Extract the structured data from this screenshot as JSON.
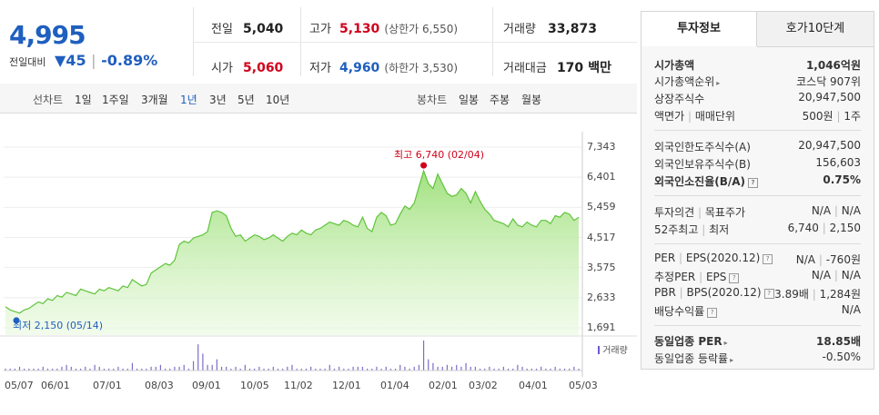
{
  "quote": {
    "price": "4,995",
    "change_label": "전일대비",
    "change_arrow": "▼",
    "change_value": "45",
    "change_pct": "-0.89%",
    "prev_close_label": "전일",
    "prev_close": "5,040",
    "high_label": "고가",
    "high": "5,130",
    "upper_limit": "(상한가 6,550)",
    "volume_label": "거래량",
    "volume": "33,873",
    "open_label": "시가",
    "open": "5,060",
    "low_label": "저가",
    "low": "4,960",
    "lower_limit": "(하한가 3,530)",
    "amount_label": "거래대금",
    "amount": "170",
    "amount_unit": "백만"
  },
  "toolbar": {
    "line_chart": "선차트",
    "periods": [
      "1일",
      "1주일",
      "3개월",
      "1년",
      "3년",
      "5년",
      "10년"
    ],
    "selected_period": "1년",
    "candle_chart": "봉차트",
    "candle_periods": [
      "일봉",
      "주봉",
      "월봉"
    ]
  },
  "chart_data": {
    "type": "area",
    "y_ticks": [
      "7,343",
      "6,401",
      "5,459",
      "4,517",
      "3,575",
      "2,633",
      "1,691"
    ],
    "x_ticks": [
      "05/07",
      "06/01",
      "07/01",
      "08/03",
      "09/01",
      "10/05",
      "11/02",
      "12/01",
      "01/04",
      "02/01",
      "03/02",
      "04/01",
      "05/03"
    ],
    "ylim": [
      1691,
      7343
    ],
    "high_annotation": "최고 6,740 (02/04)",
    "low_annotation": "최저 2,150 (05/14)",
    "volume_label": "거래량",
    "values": [
      2350,
      2250,
      2200,
      2150,
      2250,
      2300,
      2400,
      2500,
      2450,
      2600,
      2550,
      2700,
      2650,
      2800,
      2750,
      2700,
      2900,
      2850,
      2800,
      2750,
      2900,
      2850,
      2950,
      2900,
      2850,
      3000,
      2950,
      3200,
      3100,
      3000,
      3050,
      3400,
      3500,
      3600,
      3700,
      3650,
      3800,
      4300,
      4400,
      4350,
      4500,
      4550,
      4600,
      4700,
      5300,
      5350,
      5300,
      5200,
      4800,
      4550,
      4600,
      4400,
      4500,
      4600,
      4550,
      4450,
      4500,
      4600,
      4500,
      4400,
      4550,
      4650,
      4600,
      4750,
      4650,
      4600,
      4750,
      4800,
      4900,
      5000,
      4950,
      4900,
      5050,
      5000,
      4900,
      4850,
      5150,
      4800,
      4700,
      5150,
      5300,
      5200,
      4900,
      4950,
      5250,
      5500,
      5400,
      5600,
      6100,
      6600,
      6200,
      6050,
      6500,
      6200,
      5900,
      5800,
      5850,
      6050,
      5900,
      5600,
      5950,
      5650,
      5400,
      5250,
      5050,
      5000,
      4950,
      4850,
      5100,
      4900,
      4850,
      5000,
      4900,
      4850,
      5050,
      5050,
      4950,
      5200,
      5150,
      5300,
      5250,
      5050,
      5150
    ],
    "volume": [
      1,
      1,
      1,
      2,
      1,
      1,
      1,
      1,
      2,
      1,
      1,
      1,
      2,
      3,
      2,
      1,
      1,
      2,
      1,
      3,
      2,
      1,
      1,
      1,
      2,
      1,
      1,
      4,
      1,
      1,
      1,
      2,
      2,
      3,
      1,
      1,
      2,
      2,
      3,
      1,
      5,
      14,
      9,
      3,
      3,
      6,
      2,
      2,
      1,
      2,
      1,
      3,
      1,
      1,
      2,
      1,
      1,
      2,
      1,
      1,
      2,
      3,
      1,
      1,
      1,
      2,
      1,
      1,
      1,
      3,
      1,
      2,
      1,
      1,
      2,
      2,
      2,
      1,
      1,
      2,
      1,
      2,
      1,
      1,
      3,
      2,
      1,
      2,
      3,
      16,
      6,
      4,
      2,
      2,
      3,
      2,
      3,
      2,
      4,
      2,
      2,
      1,
      1,
      2,
      1,
      1,
      2,
      1,
      1,
      3,
      2,
      1,
      1,
      1,
      2,
      1,
      1,
      2,
      1,
      1,
      1,
      2,
      1
    ]
  },
  "invest_info": {
    "tab_active": "투자정보",
    "tab_other": "호가10단계",
    "market_cap_label": "시가총액",
    "market_cap": "1,046억원",
    "rank_label": "시가총액순위",
    "rank": "코스닥 907위",
    "shares_label": "상장주식수",
    "shares": "20,947,500",
    "par_label": "액면가",
    "lot_label": "매매단위",
    "par": "500원",
    "lot": "1주",
    "foreign_limit_label": "외국인한도주식수(A)",
    "foreign_limit": "20,947,500",
    "foreign_hold_label": "외국인보유주식수(B)",
    "foreign_hold": "156,603",
    "foreign_ratio_label": "외국인소진율(B/A)",
    "foreign_ratio": "0.75%",
    "opinion_label": "투자의견",
    "target_label": "목표주가",
    "opinion": "N/A",
    "target": "N/A",
    "w52_high_label": "52주최고",
    "w52_low_label": "최저",
    "w52_high": "6,740",
    "w52_low": "2,150",
    "per_label": "PER",
    "eps_label": "EPS(2020.12)",
    "per": "N/A",
    "eps": "-760원",
    "est_per_label": "추정PER",
    "est_eps_label": "EPS",
    "est_per": "N/A",
    "est_eps": "N/A",
    "pbr_label": "PBR",
    "bps_label": "BPS(2020.12)",
    "pbr": "3.89배",
    "bps": "1,284원",
    "dividend_label": "배당수익률",
    "dividend": "N/A",
    "sector_per_label": "동일업종 PER",
    "sector_per": "18.85배",
    "sector_chg_label": "동일업종 등락률",
    "sector_chg": "-0.50%"
  }
}
